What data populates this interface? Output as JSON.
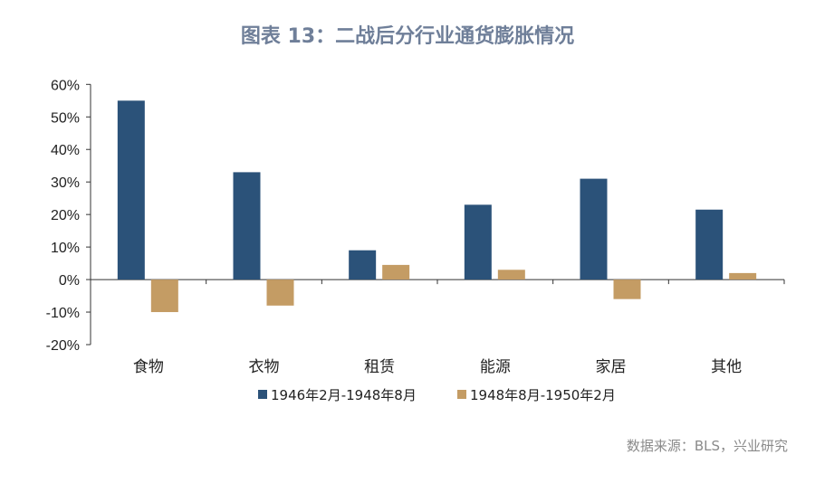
{
  "chart_data": {
    "type": "bar",
    "title": "图表 13：二战后分行业通货膨胀情况",
    "categories": [
      "食物",
      "衣物",
      "租赁",
      "能源",
      "家居",
      "其他"
    ],
    "series": [
      {
        "name": "1946年2月-1948年8月",
        "color": "#2b5279",
        "values": [
          55,
          33,
          9,
          23,
          31,
          21.5
        ]
      },
      {
        "name": "1948年8月-1950年2月",
        "color": "#c49c64",
        "values": [
          -10,
          -8,
          4.5,
          3,
          -6,
          2
        ]
      }
    ],
    "yticks": [
      "60%",
      "50%",
      "40%",
      "30%",
      "20%",
      "10%",
      "0%",
      "-10%",
      "-20%"
    ],
    "ylim": [
      -20,
      60
    ],
    "xlabel": "",
    "ylabel": "",
    "legend": "bottom",
    "grid": false,
    "source": "数据来源：BLS，兴业研究"
  }
}
